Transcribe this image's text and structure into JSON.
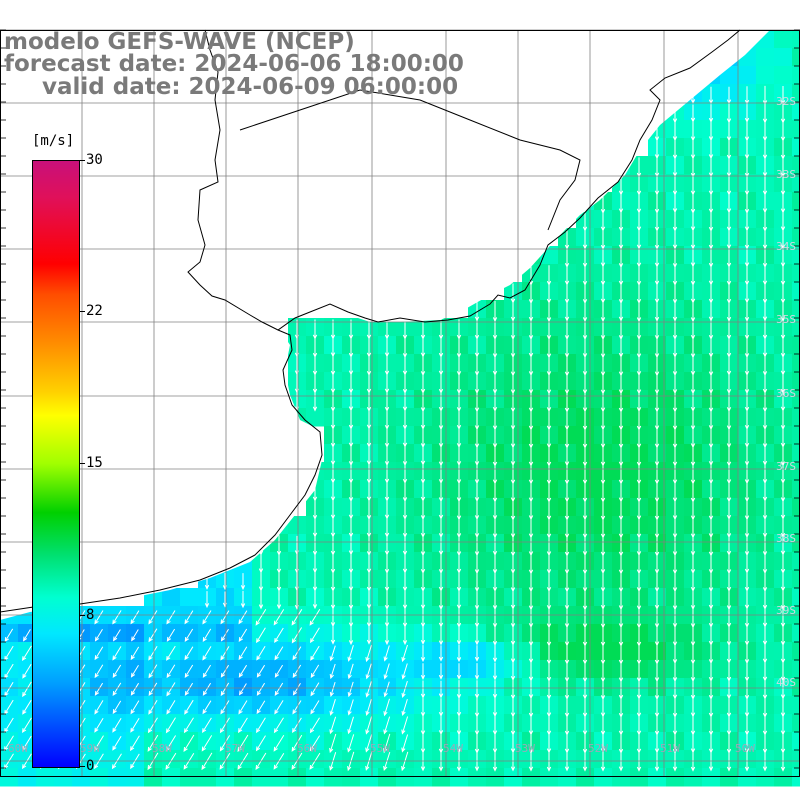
{
  "title": {
    "model": "modelo GEFS-WAVE (NCEP)",
    "forecast": "forecast date: 2024-06-06 18:00:00",
    "valid": "valid date: 2024-06-09 06:00:00"
  },
  "colorbar": {
    "unit": "[m/s]",
    "ticks": [
      "30",
      "22",
      "15",
      "8",
      "0"
    ],
    "colors": [
      "#c8107a",
      "#ff0000",
      "#ff8c00",
      "#ffff00",
      "#00d000",
      "#00ffd0",
      "#00e8ff",
      "#0050ff",
      "#0000ff"
    ]
  },
  "lat_labels": [
    "32S",
    "33S",
    "34S",
    "35S",
    "36S",
    "37S",
    "38S",
    "39S",
    "40S"
  ],
  "lon_labels": [
    "60W",
    "59W",
    "58W",
    "57W",
    "56W",
    "55W",
    "54W",
    "53W",
    "52W",
    "51W",
    "50W"
  ],
  "colors": {
    "land": "#ffffff",
    "coast": "#000000",
    "grid": "#808080",
    "arrow": "#ffffff",
    "title": "#7a7a7a"
  },
  "field": {
    "variable": "wind speed and direction",
    "unit": "m/s",
    "range": [
      0,
      30
    ],
    "typical_speed_open_ocean": 9,
    "min_speed_south": 4,
    "max_speed_east": 11
  }
}
